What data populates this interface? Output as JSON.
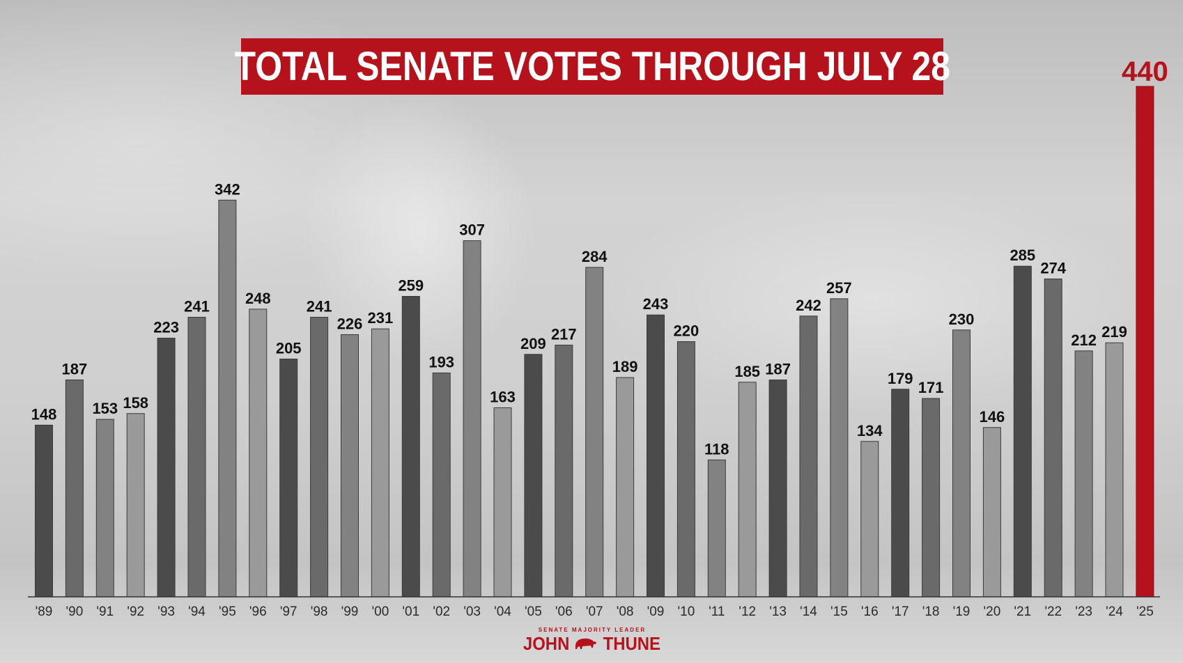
{
  "chart_data": {
    "type": "bar",
    "title": "TOTAL SENATE VOTES THROUGH JULY 28",
    "xlabel": "",
    "ylabel": "",
    "ylim": [
      0,
      440
    ],
    "grid": false,
    "categories": [
      "'89",
      "'90",
      "'91",
      "'92",
      "'93",
      "'94",
      "'95",
      "'96",
      "'97",
      "'98",
      "'99",
      "'00",
      "'01",
      "'02",
      "'03",
      "'04",
      "'05",
      "'06",
      "'07",
      "'08",
      "'09",
      "'10",
      "'11",
      "'12",
      "'13",
      "'14",
      "'15",
      "'16",
      "'17",
      "'18",
      "'19",
      "'20",
      "'21",
      "'22",
      "'23",
      "'24",
      "'25"
    ],
    "values": [
      148,
      187,
      153,
      158,
      223,
      241,
      342,
      248,
      205,
      241,
      226,
      231,
      259,
      193,
      307,
      163,
      209,
      217,
      284,
      189,
      243,
      220,
      118,
      185,
      187,
      242,
      257,
      134,
      179,
      171,
      230,
      146,
      285,
      274,
      212,
      219,
      440
    ],
    "bar_colors": [
      "#4b4b4b",
      "#6a6a6a",
      "#828282",
      "#9a9a9a",
      "#4b4b4b",
      "#6a6a6a",
      "#828282",
      "#9a9a9a",
      "#4b4b4b",
      "#6a6a6a",
      "#828282",
      "#9a9a9a",
      "#4b4b4b",
      "#6a6a6a",
      "#828282",
      "#9a9a9a",
      "#4b4b4b",
      "#6a6a6a",
      "#828282",
      "#9a9a9a",
      "#4b4b4b",
      "#6a6a6a",
      "#828282",
      "#9a9a9a",
      "#4b4b4b",
      "#6a6a6a",
      "#828282",
      "#9a9a9a",
      "#4b4b4b",
      "#6a6a6a",
      "#828282",
      "#9a9a9a",
      "#4b4b4b",
      "#6a6a6a",
      "#828282",
      "#9a9a9a",
      "#b5121b"
    ],
    "highlight_color": "#b5121b"
  },
  "logo": {
    "top_line": "SENATE MAJORITY LEADER",
    "left_word": "JOHN",
    "right_word": "THUNE",
    "icon": "buffalo-icon"
  }
}
